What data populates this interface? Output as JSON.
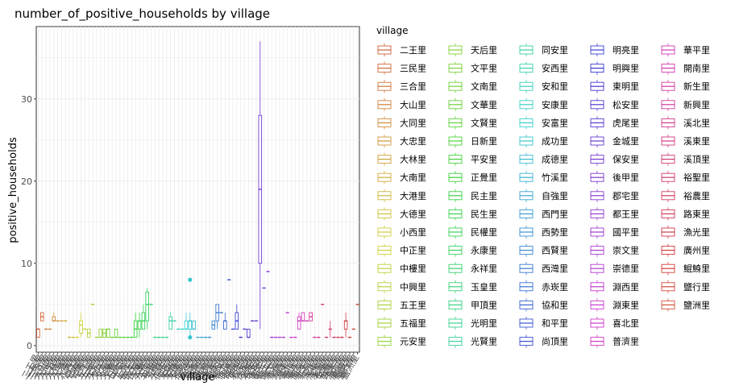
{
  "chart_data": {
    "type": "box",
    "title": "number_of_positive_households by village",
    "xlabel": "village",
    "ylabel": "positive_households",
    "yticks": [
      0,
      10,
      20,
      30
    ],
    "ylim": [
      -0.8,
      38.8
    ],
    "grid": true,
    "legend": {
      "title": "village",
      "position": "right",
      "columns": 5
    },
    "categories": [
      "二王里",
      "三民里",
      "三合里",
      "大山里",
      "大同里",
      "大忠里",
      "大林里",
      "大南里",
      "大港里",
      "大德里",
      "小西里",
      "中正里",
      "中樓里",
      "中興里",
      "五王里",
      "五福里",
      "元安里",
      "天后里",
      "文平里",
      "文南里",
      "文華里",
      "文賢里",
      "日新里",
      "平安里",
      "正覺里",
      "民主里",
      "民生里",
      "民權里",
      "永康里",
      "永祥里",
      "玉皇里",
      "甲頂里",
      "光明里",
      "光賢里",
      "同安里",
      "安西里",
      "安和里",
      "安康里",
      "安富里",
      "成功里",
      "成德里",
      "竹溪里",
      "自強里",
      "西門里",
      "西勢里",
      "西賢里",
      "西灣里",
      "赤崁里",
      "協和里",
      "和平里",
      "尚頂里",
      "明亮里",
      "明興里",
      "東明里",
      "松安里",
      "虎尾里",
      "金城里",
      "保安里",
      "後甲里",
      "郡宅里",
      "都王里",
      "國平里",
      "崇文里",
      "崇德里",
      "淵西里",
      "淵東里",
      "喜北里",
      "普濟里",
      "華平里",
      "開南里",
      "新生里",
      "新興里",
      "溪北里",
      "溪東里",
      "溪頂里",
      "裕聖里",
      "裕農里",
      "路東里",
      "漁光里",
      "廣州里",
      "鯤鯓里",
      "鹽行里",
      "鹽洲里"
    ],
    "boxes": [
      {
        "min": 1,
        "q1": 1,
        "median": 2,
        "q3": 2,
        "max": 2
      },
      {
        "min": 3,
        "q1": 3,
        "median": 3.5,
        "q3": 4,
        "max": 4
      },
      {
        "min": 2,
        "q1": 2,
        "median": 2,
        "q3": 2,
        "max": 2
      },
      {
        "min": 2,
        "q1": 2,
        "median": 2,
        "q3": 2,
        "max": 2
      },
      {
        "min": 3,
        "q1": 3,
        "median": 3,
        "q3": 3.5,
        "max": 4
      },
      {
        "min": 3,
        "q1": 3,
        "median": 3,
        "q3": 3,
        "max": 3
      },
      {
        "min": 3,
        "q1": 3,
        "median": 3,
        "q3": 3,
        "max": 3
      },
      {
        "min": 3,
        "q1": 3,
        "median": 3,
        "q3": 3,
        "max": 3
      },
      {
        "min": 1,
        "q1": 1,
        "median": 1,
        "q3": 1,
        "max": 1
      },
      {
        "min": 1,
        "q1": 1,
        "median": 1,
        "q3": 1,
        "max": 1
      },
      {
        "min": 1,
        "q1": 1,
        "median": 1,
        "q3": 1,
        "max": 1
      },
      {
        "min": 1,
        "q1": 1.5,
        "median": 2.5,
        "q3": 3,
        "max": 4
      },
      {
        "min": 2,
        "q1": 2,
        "median": 2,
        "q3": 2,
        "max": 2
      },
      {
        "min": 1,
        "q1": 1,
        "median": 1.5,
        "q3": 2,
        "max": 2
      },
      {
        "min": 5,
        "q1": 5,
        "median": 5,
        "q3": 5,
        "max": 5
      },
      {
        "min": 1,
        "q1": 1,
        "median": 1,
        "q3": 1,
        "max": 1
      },
      {
        "min": 1,
        "q1": 1,
        "median": 1,
        "q3": 2,
        "max": 2
      },
      {
        "min": 1,
        "q1": 1,
        "median": 1.5,
        "q3": 2,
        "max": 2
      },
      {
        "min": 1,
        "q1": 1,
        "median": 2,
        "q3": 2,
        "max": 2
      },
      {
        "min": 1,
        "q1": 1,
        "median": 1,
        "q3": 1,
        "max": 1
      },
      {
        "min": 1,
        "q1": 1,
        "median": 1,
        "q3": 2,
        "max": 2
      },
      {
        "min": 1,
        "q1": 1,
        "median": 1,
        "q3": 1,
        "max": 1
      },
      {
        "min": 1,
        "q1": 1,
        "median": 1,
        "q3": 1,
        "max": 1
      },
      {
        "min": 1,
        "q1": 1,
        "median": 1,
        "q3": 1,
        "max": 1
      },
      {
        "min": 1,
        "q1": 1,
        "median": 1,
        "q3": 1,
        "max": 1
      },
      {
        "min": 1,
        "q1": 1,
        "median": 2,
        "q3": 3,
        "max": 4
      },
      {
        "min": 1,
        "q1": 2,
        "median": 3,
        "q3": 3,
        "max": 4
      },
      {
        "min": 2,
        "q1": 2,
        "median": 3,
        "q3": 4,
        "max": 5
      },
      {
        "min": 2,
        "q1": 3,
        "median": 5,
        "q3": 6.5,
        "max": 7
      },
      {
        "min": 5,
        "q1": 5,
        "median": 5,
        "q3": 5,
        "max": 5
      },
      {
        "min": 1,
        "q1": 1,
        "median": 1,
        "q3": 1,
        "max": 1
      },
      {
        "min": 1,
        "q1": 1,
        "median": 1,
        "q3": 1,
        "max": 1
      },
      {
        "min": 1,
        "q1": 1,
        "median": 1,
        "q3": 1,
        "max": 1
      },
      {
        "min": 1,
        "q1": 1,
        "median": 1,
        "q3": 1,
        "max": 1
      },
      {
        "min": 2,
        "q1": 2,
        "median": 3,
        "q3": 3.5,
        "max": 4
      },
      {
        "min": 3,
        "q1": 3,
        "median": 3,
        "q3": 3,
        "max": 3
      },
      {
        "min": 2,
        "q1": 2,
        "median": 2,
        "q3": 2,
        "max": 2
      },
      {
        "min": 2,
        "q1": 2,
        "median": 2,
        "q3": 2,
        "max": 2
      },
      {
        "min": 2,
        "q1": 2,
        "median": 2,
        "q3": 3,
        "max": 4
      },
      {
        "min": 1,
        "q1": 2,
        "median": 3,
        "q3": 3,
        "max": 4,
        "outliers": [
          1,
          8
        ]
      },
      {
        "min": 2,
        "q1": 2,
        "median": 2,
        "q3": 3,
        "max": 3
      },
      {
        "min": 1,
        "q1": 1,
        "median": 1,
        "q3": 1,
        "max": 1
      },
      {
        "min": 1,
        "q1": 1,
        "median": 1,
        "q3": 1,
        "max": 1
      },
      {
        "min": 1,
        "q1": 1,
        "median": 1,
        "q3": 1,
        "max": 1
      },
      {
        "min": 1,
        "q1": 1,
        "median": 1,
        "q3": 1,
        "max": 1
      },
      {
        "min": 2,
        "q1": 2,
        "median": 2.5,
        "q3": 3,
        "max": 3
      },
      {
        "min": 2,
        "q1": 3,
        "median": 4,
        "q3": 5,
        "max": 5
      },
      {
        "min": 4,
        "q1": 4,
        "median": 4,
        "q3": 4,
        "max": 4
      },
      {
        "min": 2,
        "q1": 2,
        "median": 3,
        "q3": 3,
        "max": 4
      },
      {
        "min": 8,
        "q1": 8,
        "median": 8,
        "q3": 8,
        "max": 8
      },
      {
        "min": 2,
        "q1": 2,
        "median": 2,
        "q3": 2,
        "max": 2
      },
      {
        "min": 2,
        "q1": 2,
        "median": 3,
        "q3": 4,
        "max": 5
      },
      {
        "min": 1,
        "q1": 1,
        "median": 1,
        "q3": 1,
        "max": 1
      },
      {
        "min": 2,
        "q1": 2,
        "median": 2,
        "q3": 2,
        "max": 2
      },
      {
        "min": 1,
        "q1": 1,
        "median": 1,
        "q3": 2,
        "max": 2
      },
      {
        "min": 3,
        "q1": 3,
        "median": 3,
        "q3": 3,
        "max": 3
      },
      {
        "min": 3,
        "q1": 3,
        "median": 3,
        "q3": 3,
        "max": 3
      },
      {
        "min": 2,
        "q1": 10,
        "median": 19,
        "q3": 28,
        "max": 37
      },
      {
        "min": 7,
        "q1": 7,
        "median": 7,
        "q3": 7,
        "max": 7
      },
      {
        "min": 9,
        "q1": 9,
        "median": 9,
        "q3": 9,
        "max": 9
      },
      {
        "min": 1,
        "q1": 1,
        "median": 1,
        "q3": 1,
        "max": 1
      },
      {
        "min": 1,
        "q1": 1,
        "median": 1,
        "q3": 1,
        "max": 1
      },
      {
        "min": 1,
        "q1": 1,
        "median": 1,
        "q3": 1,
        "max": 1
      },
      {
        "min": 1,
        "q1": 1,
        "median": 1,
        "q3": 1,
        "max": 1
      },
      {
        "min": 4,
        "q1": 4,
        "median": 4,
        "q3": 4,
        "max": 4
      },
      {
        "min": 1,
        "q1": 1,
        "median": 1,
        "q3": 1,
        "max": 1
      },
      {
        "min": 1,
        "q1": 1,
        "median": 1,
        "q3": 1,
        "max": 1
      },
      {
        "min": 2,
        "q1": 2,
        "median": 3,
        "q3": 3.5,
        "max": 4
      },
      {
        "min": 3,
        "q1": 3,
        "median": 3,
        "q3": 4,
        "max": 4
      },
      {
        "min": 3,
        "q1": 3,
        "median": 3,
        "q3": 3,
        "max": 3
      },
      {
        "min": 3,
        "q1": 3,
        "median": 3.5,
        "q3": 4,
        "max": 4
      },
      {
        "min": 1,
        "q1": 1,
        "median": 1,
        "q3": 1,
        "max": 1
      },
      {
        "min": 1,
        "q1": 1,
        "median": 1,
        "q3": 1,
        "max": 1
      },
      {
        "min": 5,
        "q1": 5,
        "median": 5,
        "q3": 5,
        "max": 5
      },
      {
        "min": 1,
        "q1": 1,
        "median": 1,
        "q3": 1,
        "max": 1
      },
      {
        "min": 1,
        "q1": 2,
        "median": 2,
        "q3": 2,
        "max": 3
      },
      {
        "min": 1,
        "q1": 1,
        "median": 1,
        "q3": 1,
        "max": 1
      },
      {
        "min": 1,
        "q1": 1,
        "median": 1,
        "q3": 1,
        "max": 1
      },
      {
        "min": 1,
        "q1": 1,
        "median": 1,
        "q3": 1,
        "max": 1
      },
      {
        "min": 1,
        "q1": 2,
        "median": 3,
        "q3": 3,
        "max": 4
      },
      {
        "min": 1,
        "q1": 1,
        "median": 1,
        "q3": 1,
        "max": 1
      },
      {
        "min": 2,
        "q1": 2,
        "median": 2,
        "q3": 2,
        "max": 2
      },
      {
        "min": 5,
        "q1": 5,
        "median": 5,
        "q3": 5,
        "max": 5
      }
    ]
  }
}
